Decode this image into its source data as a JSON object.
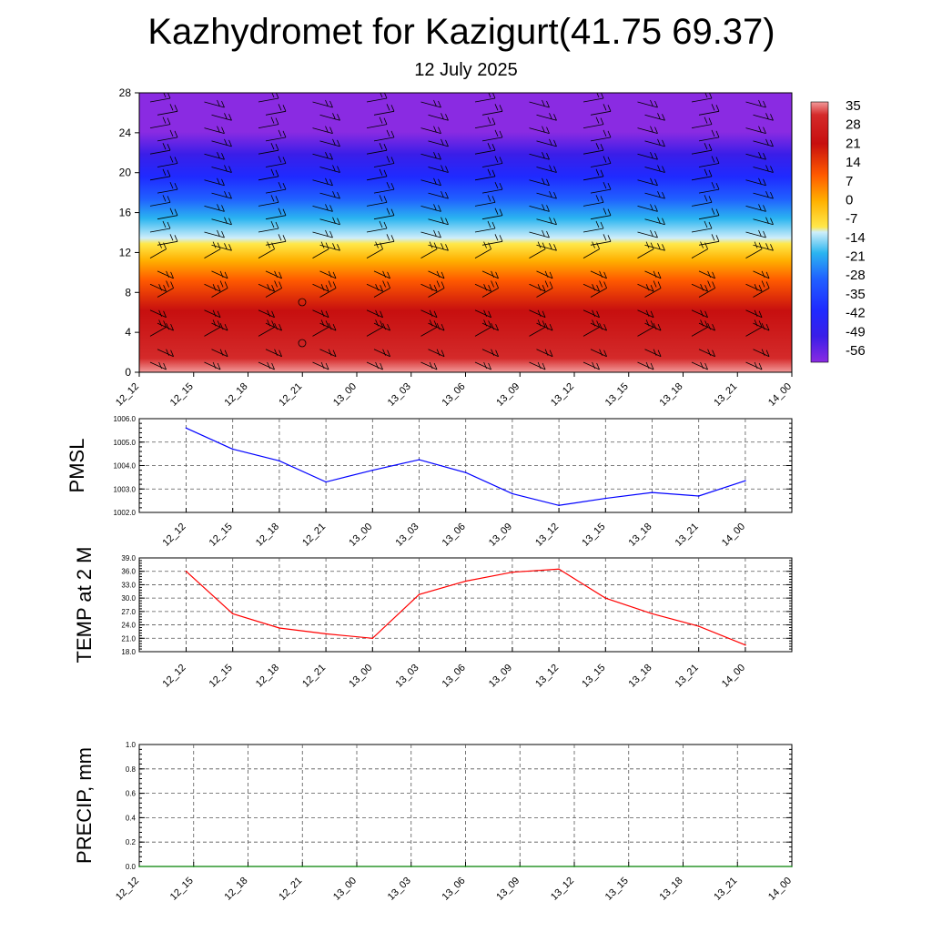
{
  "header": {
    "title": "Kazhydromet for Kazigurt(41.75 69.37)",
    "date": "12 July 2025"
  },
  "time_labels": [
    "12_12",
    "12_15",
    "12_18",
    "12_21",
    "13_00",
    "13_03",
    "13_06",
    "13_09",
    "13_12",
    "13_15",
    "13_18",
    "13_21",
    "14_00"
  ],
  "chart_data": [
    {
      "type": "heatmap",
      "name": "cross-section",
      "x": [
        "12_12",
        "12_15",
        "12_18",
        "12_21",
        "13_00",
        "13_03",
        "13_06",
        "13_09",
        "13_12",
        "13_15",
        "13_18",
        "13_21",
        "14_00"
      ],
      "y_ticks": [
        0,
        4,
        8,
        12,
        16,
        20,
        24,
        28
      ],
      "ylim": [
        0,
        28
      ],
      "colorbar_labels": [
        "35",
        "28",
        "21",
        "14",
        "7",
        "0",
        "-7",
        "-14",
        "-21",
        "-28",
        "-35",
        "-42",
        "-49",
        "-56"
      ],
      "colorbar_range": [
        -60,
        38
      ],
      "colors": {
        "cold": "#8a2be2",
        "blue": "#1f3cff",
        "cyan": "#2bb5f0",
        "light": "#cfeefa",
        "yellow": "#ffe84a",
        "orange": "#ff8c00",
        "red": "#e52c10",
        "darkred": "#c80f0f",
        "pink": "#f3a3a3"
      }
    },
    {
      "type": "line",
      "ylabel": "PMSL",
      "x": [
        "12_12",
        "12_15",
        "12_18",
        "12_21",
        "13_00",
        "13_03",
        "13_06",
        "13_09",
        "13_12",
        "13_15",
        "13_18",
        "13_21",
        "14_00"
      ],
      "values": [
        1005.6,
        1004.7,
        1004.2,
        1003.3,
        1003.8,
        1004.25,
        1003.7,
        1002.8,
        1002.3,
        1002.6,
        1002.85,
        1002.7,
        1003.35
      ],
      "ylim": [
        1002.0,
        1006.0
      ],
      "y_ticks": [
        "1002.0",
        "1003.0",
        "1004.0",
        "1005.0",
        "1006.0"
      ],
      "color": "#0000ff",
      "grid": true
    },
    {
      "type": "line",
      "ylabel": "TEMP at 2 M",
      "x": [
        "12_12",
        "12_15",
        "12_18",
        "12_21",
        "13_00",
        "13_03",
        "13_06",
        "13_09",
        "13_12",
        "13_15",
        "13_18",
        "13_21",
        "14_00"
      ],
      "values": [
        36.0,
        26.5,
        23.3,
        22.0,
        21.0,
        30.8,
        33.8,
        35.8,
        36.5,
        30.0,
        26.5,
        23.7,
        19.5
      ],
      "ylim": [
        18.0,
        39.0
      ],
      "y_ticks": [
        "18.0",
        "21.0",
        "24.0",
        "27.0",
        "30.0",
        "33.0",
        "36.0",
        "39.0"
      ],
      "color": "#ff0000",
      "grid": true
    },
    {
      "type": "line",
      "ylabel": "PRECIP, mm",
      "x": [
        "12_12",
        "12_15",
        "12_18",
        "12_21",
        "13_00",
        "13_03",
        "13_06",
        "13_09",
        "13_12",
        "13_15",
        "13_18",
        "13_21",
        "14_00"
      ],
      "values": [
        0,
        0,
        0,
        0,
        0,
        0,
        0,
        0,
        0,
        0,
        0,
        0,
        0
      ],
      "ylim": [
        0.0,
        1.0
      ],
      "y_ticks": [
        "0.0",
        "0.2",
        "0.4",
        "0.6",
        "0.8",
        "1.0"
      ],
      "color": "#008000",
      "grid": true
    }
  ]
}
